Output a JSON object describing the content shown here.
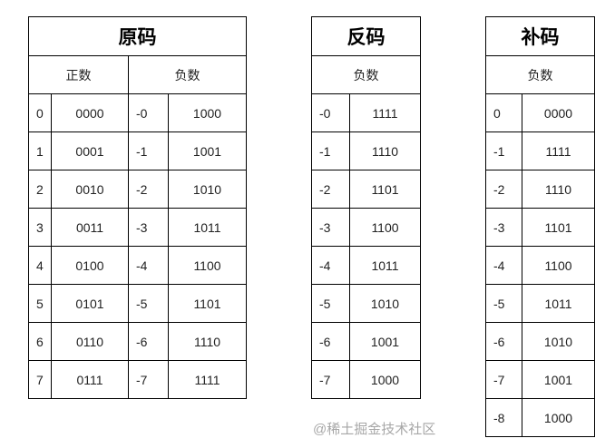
{
  "tables": [
    {
      "title": "原码",
      "headers": [
        "正数",
        "负数"
      ],
      "rows": [
        [
          "0",
          "0000",
          "-0",
          "1000"
        ],
        [
          "1",
          "0001",
          "-1",
          "1001"
        ],
        [
          "2",
          "0010",
          "-2",
          "1010"
        ],
        [
          "3",
          "0011",
          "-3",
          "1011"
        ],
        [
          "4",
          "0100",
          "-4",
          "1100"
        ],
        [
          "5",
          "0101",
          "-5",
          "1101"
        ],
        [
          "6",
          "0110",
          "-6",
          "1110"
        ],
        [
          "7",
          "0111",
          "-7",
          "1111"
        ]
      ]
    },
    {
      "title": "反码",
      "headers": [
        "负数"
      ],
      "rows": [
        [
          "-0",
          "1111"
        ],
        [
          "-1",
          "1110"
        ],
        [
          "-2",
          "1101"
        ],
        [
          "-3",
          "1100"
        ],
        [
          "-4",
          "1011"
        ],
        [
          "-5",
          "1010"
        ],
        [
          "-6",
          "1001"
        ],
        [
          "-7",
          "1000"
        ]
      ]
    },
    {
      "title": "补码",
      "headers": [
        "负数"
      ],
      "rows": [
        [
          "0",
          "0000"
        ],
        [
          "-1",
          "1111"
        ],
        [
          "-2",
          "1110"
        ],
        [
          "-3",
          "1101"
        ],
        [
          "-4",
          "1100"
        ],
        [
          "-5",
          "1011"
        ],
        [
          "-6",
          "1010"
        ],
        [
          "-7",
          "1001"
        ],
        [
          "-8",
          "1000"
        ]
      ]
    }
  ],
  "watermark": "@稀土掘金技术社区"
}
